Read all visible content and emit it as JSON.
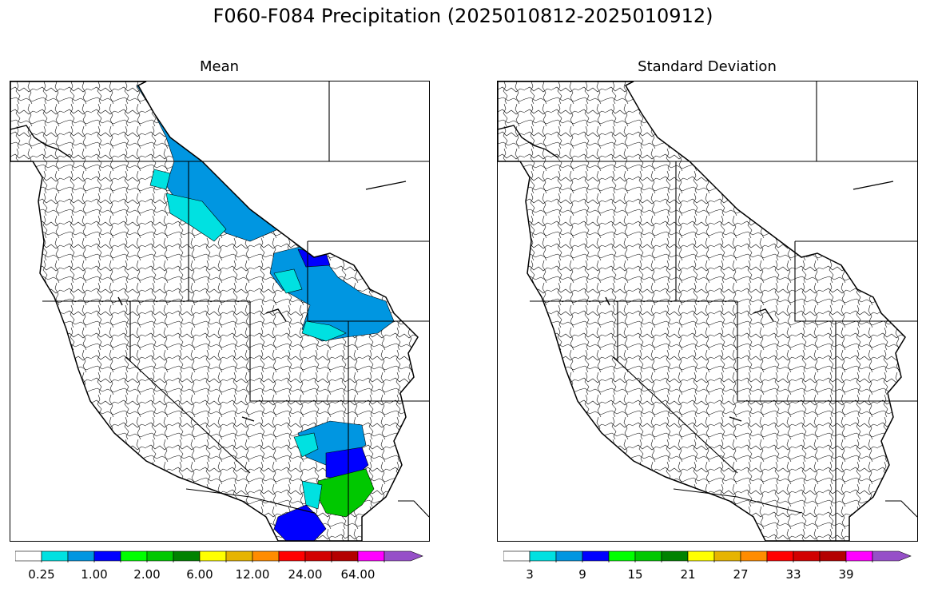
{
  "title": "F060-F084 Precipitation (2025010812-2025010912)",
  "panels": [
    {
      "title": "Mean",
      "colorbar": {
        "colors": [
          "#ffffff",
          "#00e1e1",
          "#0096e1",
          "#0000ff",
          "#00ff00",
          "#00c800",
          "#008200",
          "#ffff00",
          "#e6b400",
          "#ff8c00",
          "#ff0000",
          "#d20000",
          "#b40000",
          "#ff00ff",
          "#9650c8"
        ],
        "tick_labels": [
          "0.25",
          "1.00",
          "2.00",
          "6.00",
          "12.00",
          "24.00",
          "64.00"
        ],
        "extend": "max"
      }
    },
    {
      "title": "Standard Deviation",
      "colorbar": {
        "colors": [
          "#ffffff",
          "#00e1e1",
          "#0096e1",
          "#0000ff",
          "#00ff00",
          "#00c800",
          "#008200",
          "#ffff00",
          "#e6b400",
          "#ff8c00",
          "#ff0000",
          "#d20000",
          "#b40000",
          "#ff00ff",
          "#9650c8"
        ],
        "tick_labels": [
          "3",
          "9",
          "15",
          "21",
          "27",
          "33",
          "39"
        ],
        "extend": "max"
      }
    }
  ]
}
